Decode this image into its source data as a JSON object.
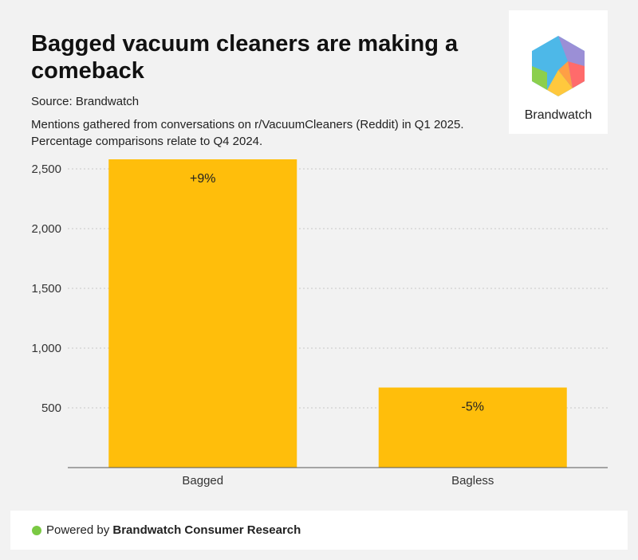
{
  "header": {
    "title": "Bagged vacuum cleaners are making a comeback",
    "source": "Source: Brandwatch",
    "description": "Mentions gathered from conversations on r/VacuumCleaners (Reddit) in Q1 2025. Percentage comparisons relate to Q4 2024."
  },
  "logo": {
    "text": "Brandwatch",
    "icon": "brandwatch-hexagon-icon"
  },
  "footer": {
    "prefix": "Powered by ",
    "brand": "Brandwatch Consumer Research",
    "dot_color": "#7ac943"
  },
  "chart_data": {
    "type": "bar",
    "categories": [
      "Bagged",
      "Bagless"
    ],
    "values": [
      2580,
      670
    ],
    "data_labels": [
      "+9%",
      "-5%"
    ],
    "yticks": [
      500,
      1000,
      1500,
      2000,
      2500
    ],
    "ytick_labels": [
      "500",
      "1,000",
      "1,500",
      "2,000",
      "2,500"
    ],
    "ylim": [
      0,
      2500
    ],
    "grid": true,
    "bar_color": "#ffbe0b",
    "legend": "none"
  }
}
